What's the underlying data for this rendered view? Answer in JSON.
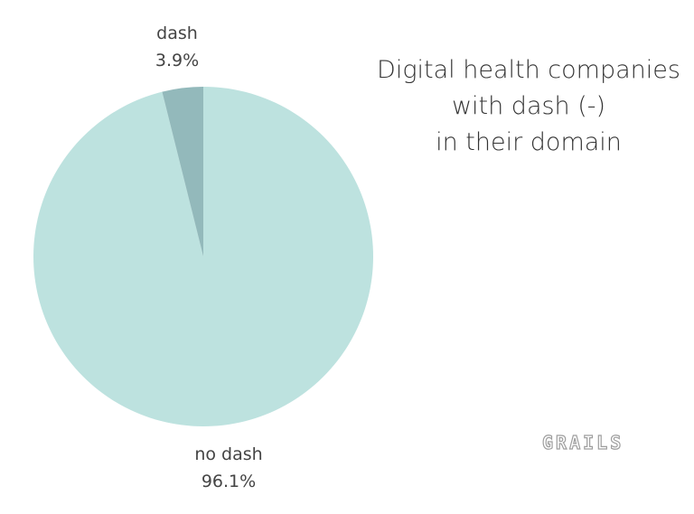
{
  "chart_data": {
    "type": "pie",
    "title_lines": [
      "Digital health companies",
      "with dash (-)",
      "in their domain"
    ],
    "slices": [
      {
        "label": "no dash",
        "value": 96.1,
        "display": "96.1%",
        "color": "#bde2df"
      },
      {
        "label": "dash",
        "value": 3.9,
        "display": "3.9%",
        "color": "#93b9bb"
      }
    ],
    "start_angle_deg": 0,
    "direction": "clockwise"
  },
  "logo": {
    "text": "GRAILS",
    "color": "#9e9e9e"
  }
}
